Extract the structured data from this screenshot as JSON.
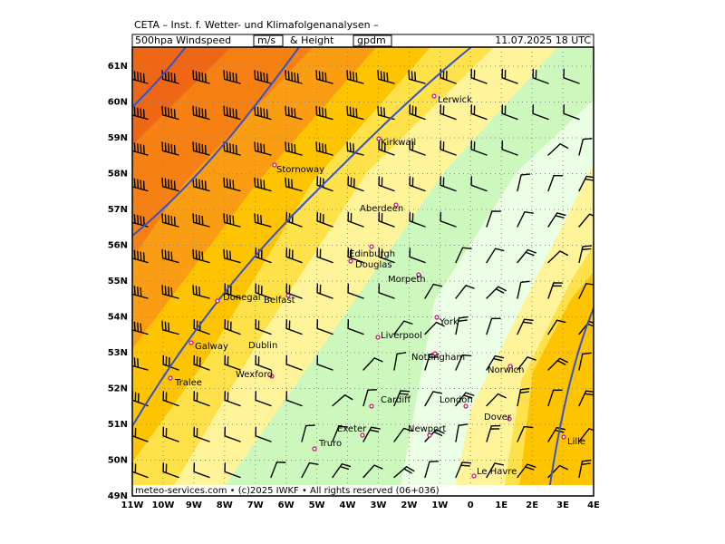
{
  "header": {
    "title": "CETA – Inst. f. Wetter- und Klimafolgenanalysen –",
    "product": "500hpa Windspeed",
    "unit": "m/s",
    "product_2": "& Height",
    "unit_2": "gpdm",
    "valid_time": "11.07.2025 18 UTC"
  },
  "lat_ticks": [
    {
      "value": 49,
      "label": "49N"
    },
    {
      "value": 50,
      "label": "50N"
    },
    {
      "value": 51,
      "label": "51N"
    },
    {
      "value": 52,
      "label": "52N"
    },
    {
      "value": 53,
      "label": "53N"
    },
    {
      "value": 54,
      "label": "54N"
    },
    {
      "value": 55,
      "label": "55N"
    },
    {
      "value": 56,
      "label": "56N"
    },
    {
      "value": 57,
      "label": "57N"
    },
    {
      "value": 58,
      "label": "58N"
    },
    {
      "value": 59,
      "label": "59N"
    },
    {
      "value": 60,
      "label": "60N"
    },
    {
      "value": 61,
      "label": "61N"
    }
  ],
  "lon_ticks": [
    {
      "value": -11,
      "label": "11W"
    },
    {
      "value": -10,
      "label": "10W"
    },
    {
      "value": -9,
      "label": "9W"
    },
    {
      "value": -8,
      "label": "8W"
    },
    {
      "value": -7,
      "label": "7W"
    },
    {
      "value": -6,
      "label": "6W"
    },
    {
      "value": -5,
      "label": "5W"
    },
    {
      "value": -4,
      "label": "4W"
    },
    {
      "value": -3,
      "label": "3W"
    },
    {
      "value": -2,
      "label": "2W"
    },
    {
      "value": -1,
      "label": "1W"
    },
    {
      "value": 0,
      "label": "0"
    },
    {
      "value": 1,
      "label": "1E"
    },
    {
      "value": 2,
      "label": "2E"
    },
    {
      "value": 3,
      "label": "3E"
    },
    {
      "value": 4,
      "label": "4E"
    }
  ],
  "cities": [
    "Lerwick",
    "Kirkwall",
    "Stornoway",
    "Aberdeen",
    "Edinburgh",
    "Douglas",
    "Morpeth",
    "Donegal",
    "Belfast",
    "York",
    "Liverpool",
    "Galway",
    "Dublin",
    "Nottingham",
    "Wexford",
    "Norwich",
    "Tralee",
    "Cardiff",
    "London",
    "Dover",
    "Exeter",
    "Newport",
    "Truro",
    "Lille",
    "Le Havre"
  ],
  "footer": "meteo-services.com • (c)2025 IWKF • All rights reserved (06+036)"
}
